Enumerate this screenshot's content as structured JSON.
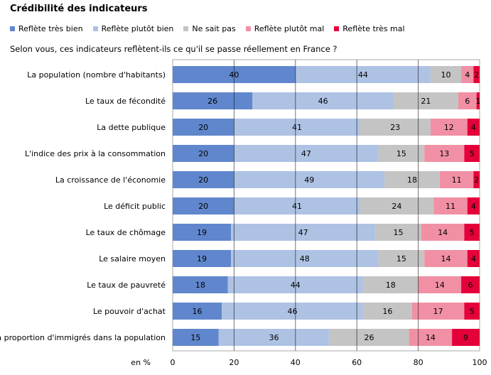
{
  "chart_data": {
    "type": "bar",
    "orientation": "horizontal",
    "stacked": true,
    "title": "Crédibilité des indicateurs",
    "subtitle": "Selon vous, ces indicateurs reflètent-ils ce qu'il se passe réellement en France ?",
    "xlabel": "en %",
    "xlim": [
      0,
      100
    ],
    "xticks": [
      0,
      20,
      40,
      60,
      80,
      100
    ],
    "grid": true,
    "legend_position": "top",
    "categories": [
      "La population (nombre d'habitants)",
      "Le taux de fécondité",
      "La dette publique",
      "L'indice des prix à la consommation",
      "La croissance de l'économie",
      "Le déficit public",
      "Le taux de chômage",
      "Le salaire moyen",
      "Le taux de pauvreté",
      "Le pouvoir d'achat",
      "La proportion d'immigrés dans la population"
    ],
    "series": [
      {
        "name": "Reflète très bien",
        "color": "#6087cd",
        "values": [
          40,
          26,
          20,
          20,
          20,
          20,
          19,
          19,
          18,
          16,
          15
        ]
      },
      {
        "name": "Reflète plutôt bien",
        "color": "#aec2e4",
        "values": [
          44,
          46,
          41,
          47,
          49,
          41,
          47,
          48,
          44,
          46,
          36
        ]
      },
      {
        "name": "Ne sait pas",
        "color": "#c4c4c4",
        "values": [
          10,
          21,
          23,
          15,
          18,
          24,
          15,
          15,
          18,
          16,
          26
        ]
      },
      {
        "name": "Reflète plutôt mal",
        "color": "#f190a4",
        "values": [
          4,
          6,
          12,
          13,
          11,
          11,
          14,
          14,
          14,
          17,
          14
        ]
      },
      {
        "name": "Reflète très mal",
        "color": "#e4003a",
        "values": [
          2,
          1,
          4,
          5,
          2,
          4,
          5,
          4,
          6,
          5,
          9
        ]
      }
    ]
  }
}
